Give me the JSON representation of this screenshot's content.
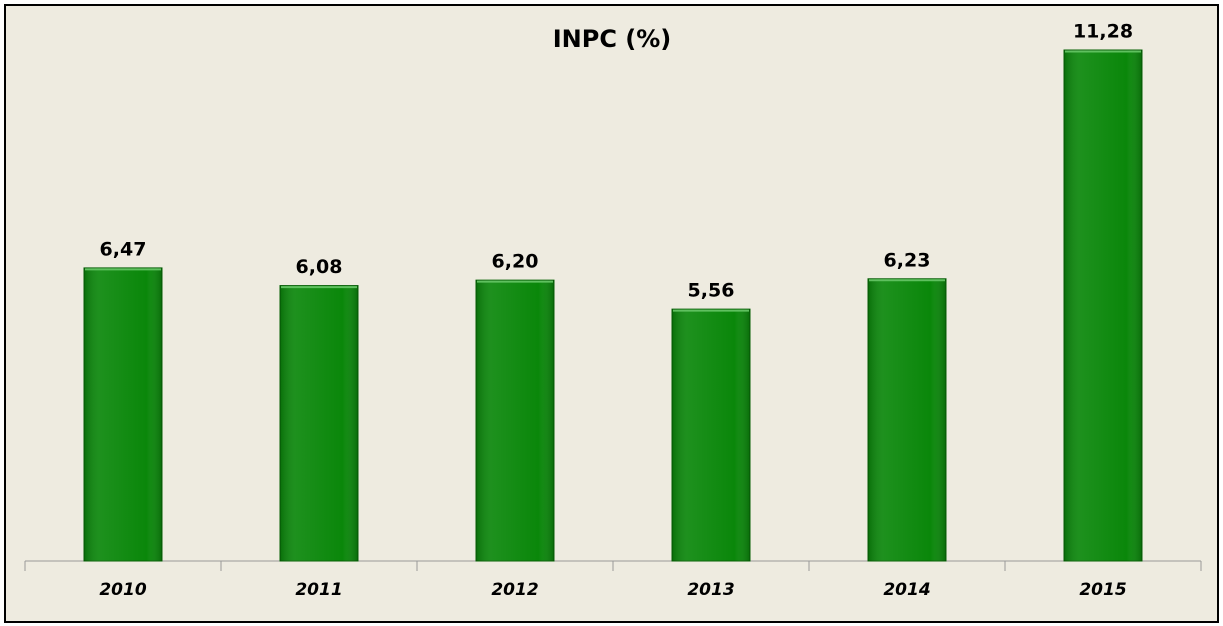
{
  "chart_data": {
    "type": "bar",
    "title": "INPC (%)",
    "categories": [
      "2010",
      "2011",
      "2012",
      "2013",
      "2014",
      "2015"
    ],
    "values": [
      6.47,
      6.08,
      6.2,
      5.56,
      6.23,
      11.28
    ],
    "value_labels": [
      "6,47",
      "6,08",
      "6,20",
      "5,56",
      "6,23",
      "11,28"
    ],
    "color": "#0a870a"
  }
}
